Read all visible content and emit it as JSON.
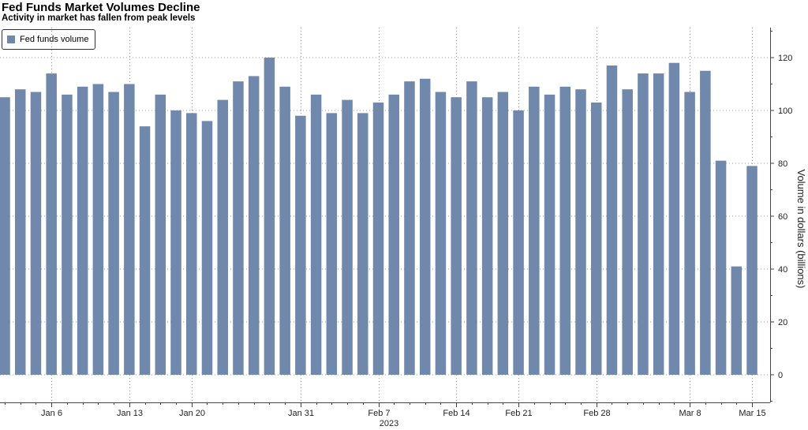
{
  "chart_data": {
    "type": "bar",
    "title": "Fed Funds Market Volumes Decline",
    "subtitle": "Activity in market has fallen from peak levels",
    "ylabel": "Volume in dollars (billions)",
    "xlabel": "",
    "year_label": "2023",
    "ylim": [
      -10,
      132
    ],
    "yticks": [
      0,
      20,
      40,
      60,
      80,
      100,
      120
    ],
    "y_axis_side": "right",
    "grid": true,
    "legend_placement": "top-left",
    "series": [
      {
        "name": "Fed funds volume",
        "color": "#6f88ab",
        "values": [
          105,
          108,
          107,
          114,
          106,
          109,
          110,
          107,
          110,
          94,
          106,
          100,
          99,
          96,
          104,
          111,
          113,
          120,
          109,
          98,
          106,
          99,
          104,
          99,
          103,
          106,
          111,
          112,
          107,
          105,
          111,
          105,
          107,
          100,
          109,
          106,
          109,
          108,
          103,
          117,
          108,
          114,
          114,
          118,
          107,
          115,
          81,
          41,
          79
        ]
      }
    ],
    "x_tick_labels": [
      "Jan 6",
      "Jan 13",
      "Jan 20",
      "Jan 31",
      "Feb 7",
      "Feb 14",
      "Feb 21",
      "Feb 28",
      "Mar 8",
      "Mar 15"
    ],
    "x_tick_bar_index": [
      3,
      8,
      12,
      19,
      24,
      29,
      33,
      38,
      44,
      48
    ]
  }
}
